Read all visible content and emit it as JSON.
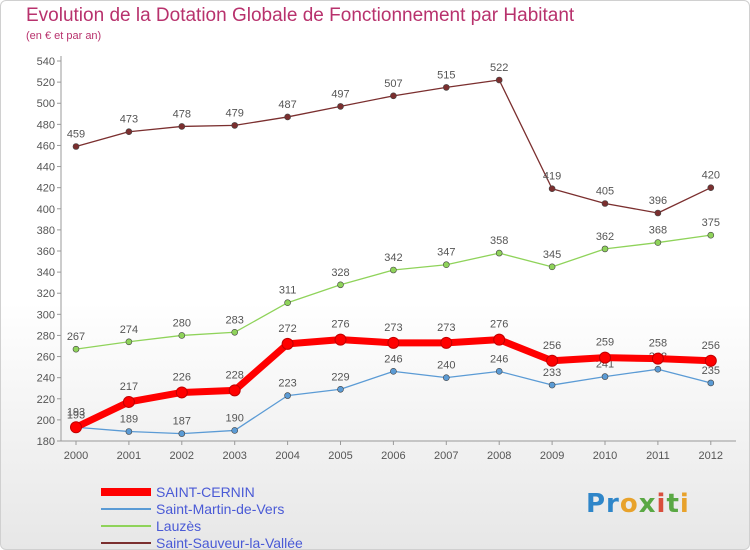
{
  "title": "Evolution de la Dotation Globale de Fonctionnement par Habitant",
  "subtitle": "(en € et par an)",
  "logo": {
    "text": "Proxiti"
  },
  "colors": {
    "title": "#b8326d",
    "legend_text": "#4a5ad6",
    "axis": "#999999",
    "grid": "#e3e3e3"
  },
  "chart_data": {
    "type": "line",
    "title": "Evolution de la Dotation Globale de Fonctionnement par Habitant",
    "subtitle": "(en € et par an)",
    "xlabel": "",
    "ylabel": "",
    "x": [
      2000,
      2001,
      2002,
      2003,
      2004,
      2005,
      2006,
      2007,
      2008,
      2009,
      2010,
      2011,
      2012
    ],
    "ylim": [
      180,
      540
    ],
    "yticks": [
      180,
      200,
      220,
      240,
      260,
      280,
      300,
      320,
      340,
      360,
      380,
      400,
      420,
      440,
      460,
      480,
      500,
      520,
      540
    ],
    "grid": false,
    "legend_position": "bottom-left",
    "series": [
      {
        "name": "SAINT-CERNIN",
        "color": "#ff0000",
        "values": [
          193,
          217,
          226,
          228,
          272,
          276,
          273,
          273,
          276,
          256,
          259,
          258,
          256
        ]
      },
      {
        "name": "Saint-Martin-de-Vers",
        "color": "#5b9bd5",
        "values": [
          193,
          189,
          187,
          190,
          223,
          229,
          246,
          240,
          246,
          233,
          241,
          248,
          235
        ]
      },
      {
        "name": "Lauzès",
        "color": "#8fd35a",
        "values": [
          267,
          274,
          280,
          283,
          311,
          328,
          342,
          347,
          358,
          345,
          362,
          368,
          375
        ]
      },
      {
        "name": "Saint-Sauveur-la-Vallée",
        "color": "#7b2f2f",
        "values": [
          459,
          473,
          478,
          479,
          487,
          497,
          507,
          515,
          522,
          419,
          405,
          396,
          420
        ]
      }
    ]
  }
}
